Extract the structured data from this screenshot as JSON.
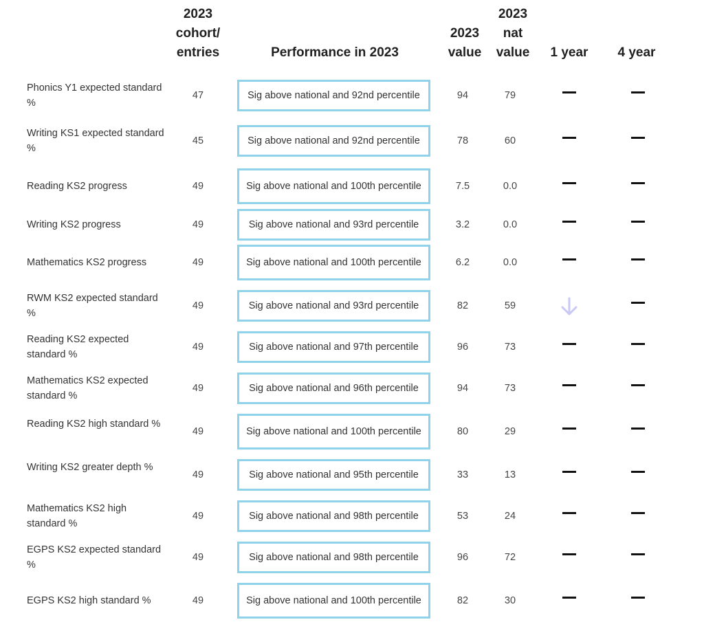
{
  "headers": {
    "cohort": [
      "2023",
      "cohort/",
      "entries"
    ],
    "performance": "Performance in 2023",
    "value": [
      "2023",
      "value"
    ],
    "nat_value": [
      "2023",
      "nat",
      "value"
    ],
    "one_year": "1 year",
    "four_year": "4 year"
  },
  "colors": {
    "box_border": "#8fd3ea",
    "arrow": "#c9c9f5",
    "dash": "#111111"
  },
  "rows": [
    {
      "label": "Phonics Y1 expected standard %",
      "cohort": "47",
      "performance": "Sig above national and 92nd percentile",
      "value": "94",
      "nat": "79",
      "one_year": "no-change-dash",
      "four_year": "no-change-dash"
    },
    {
      "label": "Writing KS1 expected standard %",
      "cohort": "45",
      "performance": "Sig above national and 92nd percentile",
      "value": "78",
      "nat": "60",
      "one_year": "no-change-dash",
      "four_year": "no-change-dash"
    },
    {
      "label": "Reading KS2 progress",
      "cohort": "49",
      "performance": "Sig above national and 100th percentile",
      "value": "7.5",
      "nat": "0.0",
      "one_year": "no-change-dash",
      "four_year": "no-change-dash"
    },
    {
      "label": "Writing KS2 progress",
      "cohort": "49",
      "performance": "Sig above national and 93rd percentile",
      "value": "3.2",
      "nat": "0.0",
      "one_year": "no-change-dash",
      "four_year": "no-change-dash"
    },
    {
      "label": "Mathematics KS2 progress",
      "cohort": "49",
      "performance": "Sig above national and 100th percentile",
      "value": "6.2",
      "nat": "0.0",
      "one_year": "no-change-dash",
      "four_year": "no-change-dash"
    },
    {
      "label": "RWM KS2 expected standard %",
      "cohort": "49",
      "performance": "Sig above national and 93rd percentile",
      "value": "82",
      "nat": "59",
      "one_year": "down-arrow",
      "four_year": "no-change-dash"
    },
    {
      "label": "Reading KS2 expected standard %",
      "cohort": "49",
      "performance": "Sig above national and 97th percentile",
      "value": "96",
      "nat": "73",
      "one_year": "no-change-dash",
      "four_year": "no-change-dash"
    },
    {
      "label": "Mathematics KS2 expected standard %",
      "cohort": "49",
      "performance": "Sig above national and 96th percentile",
      "value": "94",
      "nat": "73",
      "one_year": "no-change-dash",
      "four_year": "no-change-dash"
    },
    {
      "label": "Reading KS2 high standard %",
      "cohort": "49",
      "performance": "Sig above national and 100th percentile",
      "value": "80",
      "nat": "29",
      "one_year": "no-change-dash",
      "four_year": "no-change-dash"
    },
    {
      "label": "Writing KS2 greater depth %",
      "cohort": "49",
      "performance": "Sig above national and 95th percentile",
      "value": "33",
      "nat": "13",
      "one_year": "no-change-dash",
      "four_year": "no-change-dash"
    },
    {
      "label": "Mathematics KS2 high standard %",
      "cohort": "49",
      "performance": "Sig above national and 98th percentile",
      "value": "53",
      "nat": "24",
      "one_year": "no-change-dash",
      "four_year": "no-change-dash"
    },
    {
      "label": "EGPS KS2 expected standard %",
      "cohort": "49",
      "performance": "Sig above national and 98th percentile",
      "value": "96",
      "nat": "72",
      "one_year": "no-change-dash",
      "four_year": "no-change-dash"
    },
    {
      "label": "EGPS KS2 high standard %",
      "cohort": "49",
      "performance": "Sig above national and 100th percentile",
      "value": "82",
      "nat": "30",
      "one_year": "no-change-dash",
      "four_year": "no-change-dash"
    }
  ]
}
